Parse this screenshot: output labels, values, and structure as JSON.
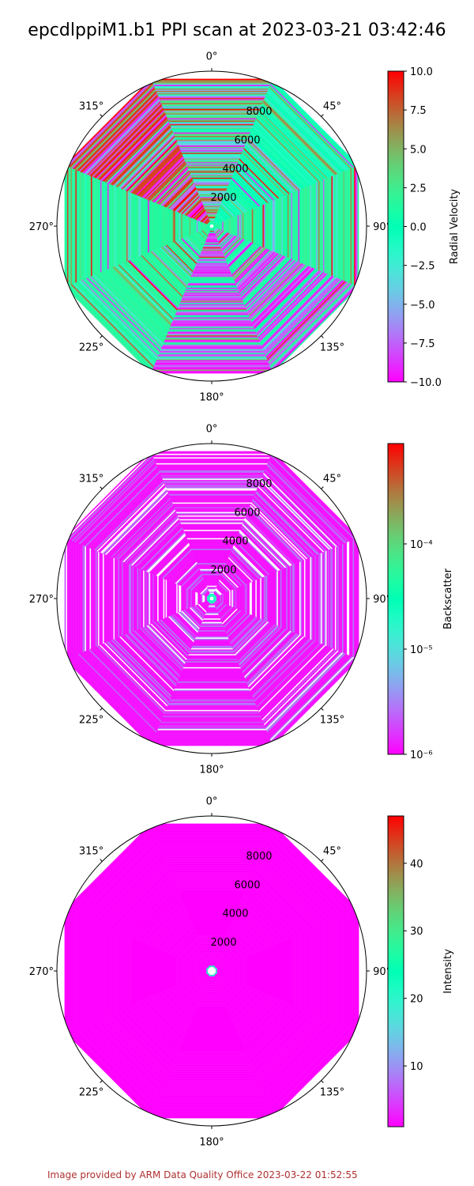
{
  "title": "epcdlppiM1.b1 PPI scan at 2023-03-21 03:42:46",
  "footer": "Image provided by ARM Data Quality Office 2023-03-22 01:52:55",
  "chart_data": [
    {
      "type": "polar_ppi",
      "variable": "Radial Velocity",
      "colorbar": {
        "label": "Radial Velocity",
        "scale": "linear",
        "range": [
          -10.0,
          10.0
        ],
        "ticks": [
          "10.0",
          "7.5",
          "5.0",
          "2.5",
          "0.0",
          "−2.5",
          "−5.0",
          "−7.5",
          "−10.0"
        ]
      },
      "angle_ticks": [
        "0°",
        "45°",
        "90°",
        "135°",
        "180°",
        "225°",
        "270°",
        "315°"
      ],
      "range_ticks": [
        "2000",
        "4000",
        "6000",
        "8000"
      ],
      "sectors": [
        "noisy mix, all colors",
        "dominant green/cyan",
        "dominant green",
        "purple/blue/green stripes",
        "dominant purple/blue",
        "dominant green",
        "dominant green",
        "mixed red/orange/purple"
      ],
      "colormap": "rainbow"
    },
    {
      "type": "polar_ppi",
      "variable": "Backscatter",
      "colorbar": {
        "label": "Backscatter",
        "scale": "log",
        "range": [
          1e-06,
          0.001
        ],
        "ticks": [
          "10⁻⁴",
          "10⁻⁵",
          "10⁻⁶"
        ]
      },
      "angle_ticks": [
        "0°",
        "45°",
        "90°",
        "135°",
        "180°",
        "225°",
        "270°",
        "315°"
      ],
      "range_ticks": [
        "2000",
        "4000",
        "6000",
        "8000"
      ],
      "dominant_value": 1e-06,
      "near_field_value": 1.5e-05,
      "colormap": "rainbow"
    },
    {
      "type": "polar_ppi",
      "variable": "Intensity",
      "colorbar": {
        "label": "Intensity",
        "scale": "linear",
        "range": [
          1,
          47
        ],
        "ticks": [
          "40",
          "30",
          "20",
          "10"
        ]
      },
      "angle_ticks": [
        "0°",
        "45°",
        "90°",
        "135°",
        "180°",
        "225°",
        "270°",
        "315°"
      ],
      "range_ticks": [
        "2000",
        "4000",
        "6000",
        "8000"
      ],
      "dominant_value": 1,
      "near_field_value": 20,
      "colormap": "rainbow"
    }
  ]
}
